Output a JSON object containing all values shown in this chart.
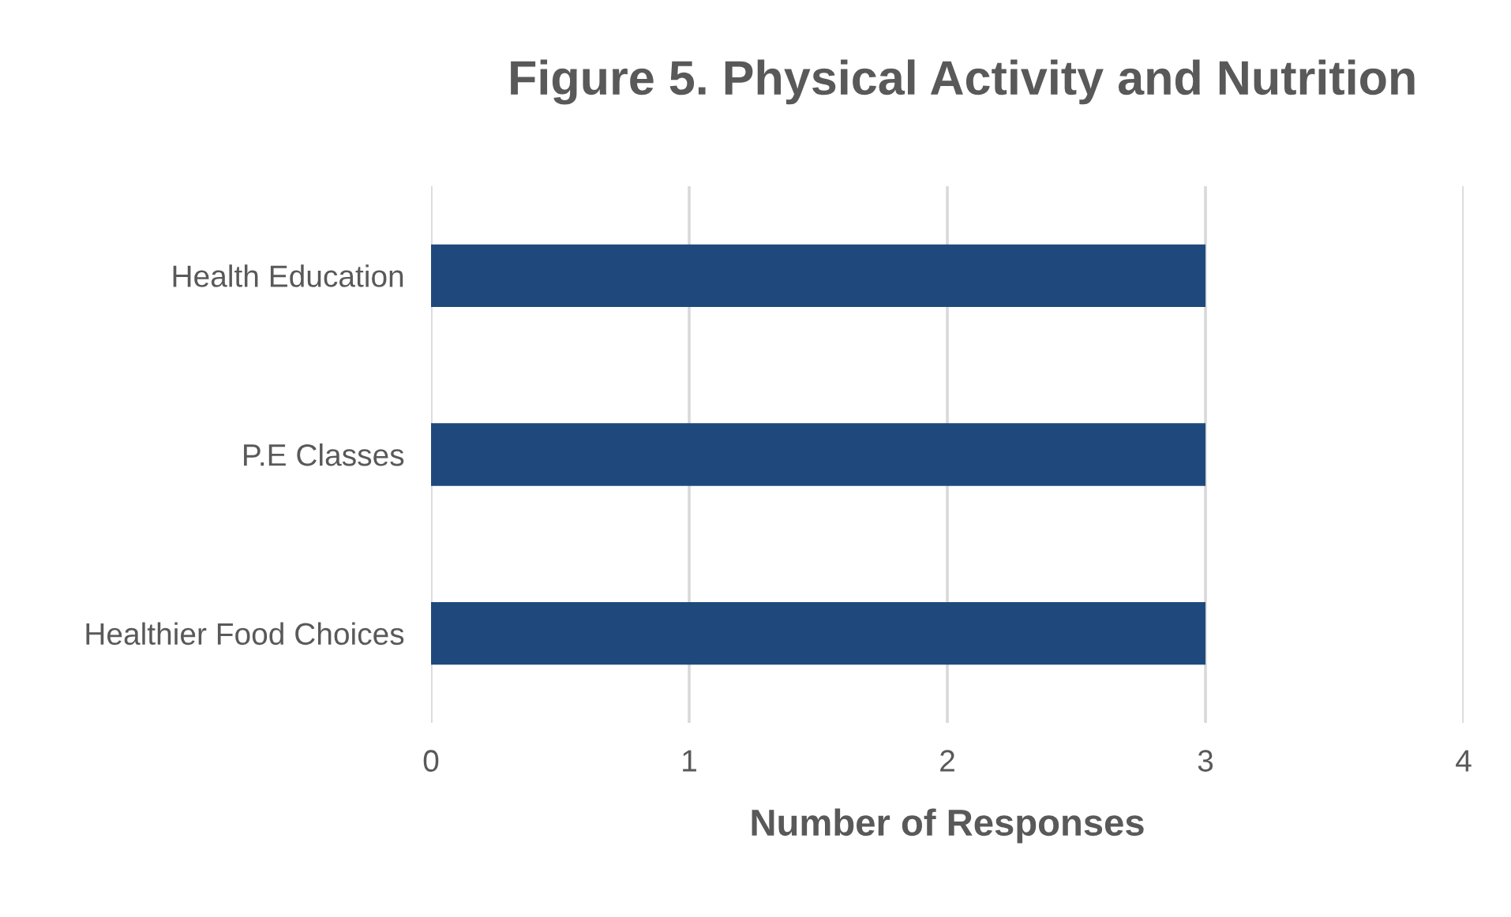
{
  "chart_data": {
    "type": "bar",
    "orientation": "horizontal",
    "title": "Figure 5. Physical Activity and Nutrition",
    "xlabel": "Number of Responses",
    "categories": [
      "Health Education",
      "P.E Classes",
      "Healthier Food Choices"
    ],
    "values": [
      3,
      3,
      3
    ],
    "color": "#1f497d",
    "xlim": [
      0,
      4
    ],
    "xticks": [
      0,
      1,
      2,
      3,
      4
    ],
    "grid": "x"
  }
}
